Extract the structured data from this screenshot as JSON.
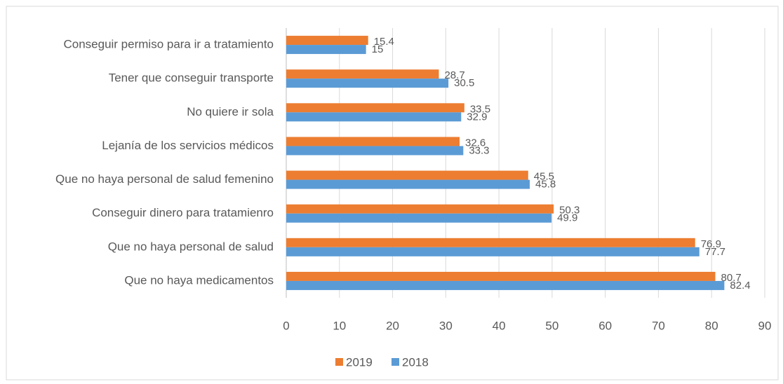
{
  "chart_data": {
    "type": "hbar",
    "categories": [
      "Conseguir permiso para ir a tratamiento",
      "Tener que conseguir transporte",
      "No quiere ir sola",
      "Lejanía de los servicios médicos",
      "Que no haya personal de salud femenino",
      "Conseguir dinero para tratamienro",
      "Que no haya personal de salud",
      "Que no haya medicamentos"
    ],
    "series": [
      {
        "name": "2019",
        "color": "#ed7d31",
        "values": [
          15.4,
          28.7,
          33.5,
          32.6,
          45.5,
          50.3,
          76.9,
          80.7
        ]
      },
      {
        "name": "2018",
        "color": "#5b9bd5",
        "values": [
          15,
          30.5,
          32.9,
          33.3,
          45.8,
          49.9,
          77.7,
          82.4
        ]
      }
    ],
    "xlim": [
      0,
      90
    ],
    "xticks": [
      0,
      10,
      20,
      30,
      40,
      50,
      60,
      70,
      80,
      90
    ],
    "grid": true,
    "legend": "bottom"
  }
}
